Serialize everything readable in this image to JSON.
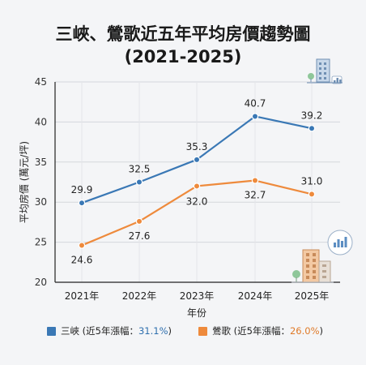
{
  "title_line1": "三峽、鶯歌近五年平均房價趨勢圖",
  "title_line2": "(2021-2025)",
  "chart_data": {
    "type": "line",
    "title": "三峽、鶯歌近五年平均房價趨勢圖 (2021-2025)",
    "xlabel": "年份",
    "ylabel": "平均房價 (萬元/坪)",
    "categories": [
      "2021年",
      "2022年",
      "2023年",
      "2024年",
      "2025年"
    ],
    "ylim": [
      20,
      45
    ],
    "yticks": [
      20,
      25,
      30,
      35,
      40,
      45
    ],
    "grid": true,
    "legend_position": "bottom",
    "series": [
      {
        "name": "三峽",
        "values": [
          29.9,
          32.5,
          35.3,
          40.7,
          39.2
        ],
        "labels": [
          "29.9",
          "32.5",
          "35.3",
          "40.7",
          "39.2"
        ],
        "color": "#3a78b5"
      },
      {
        "name": "鶯歌",
        "values": [
          24.6,
          27.6,
          32.0,
          32.7,
          31.0
        ],
        "labels": [
          "24.6",
          "27.6",
          "32.0",
          "32.7",
          "31.0"
        ],
        "color": "#ee8a3c"
      }
    ]
  },
  "legend": [
    {
      "prefix": "三峽 (近5年漲幅：",
      "highlight": "31.1%",
      "suffix": ")",
      "color": "#3a78b5"
    },
    {
      "prefix": "鶯歌 (近5年漲幅：",
      "highlight": "26.0%",
      "suffix": ")",
      "color": "#ee8a3c"
    }
  ],
  "icons": [
    "city-building-icon",
    "bar-chart-bubble-icon"
  ]
}
